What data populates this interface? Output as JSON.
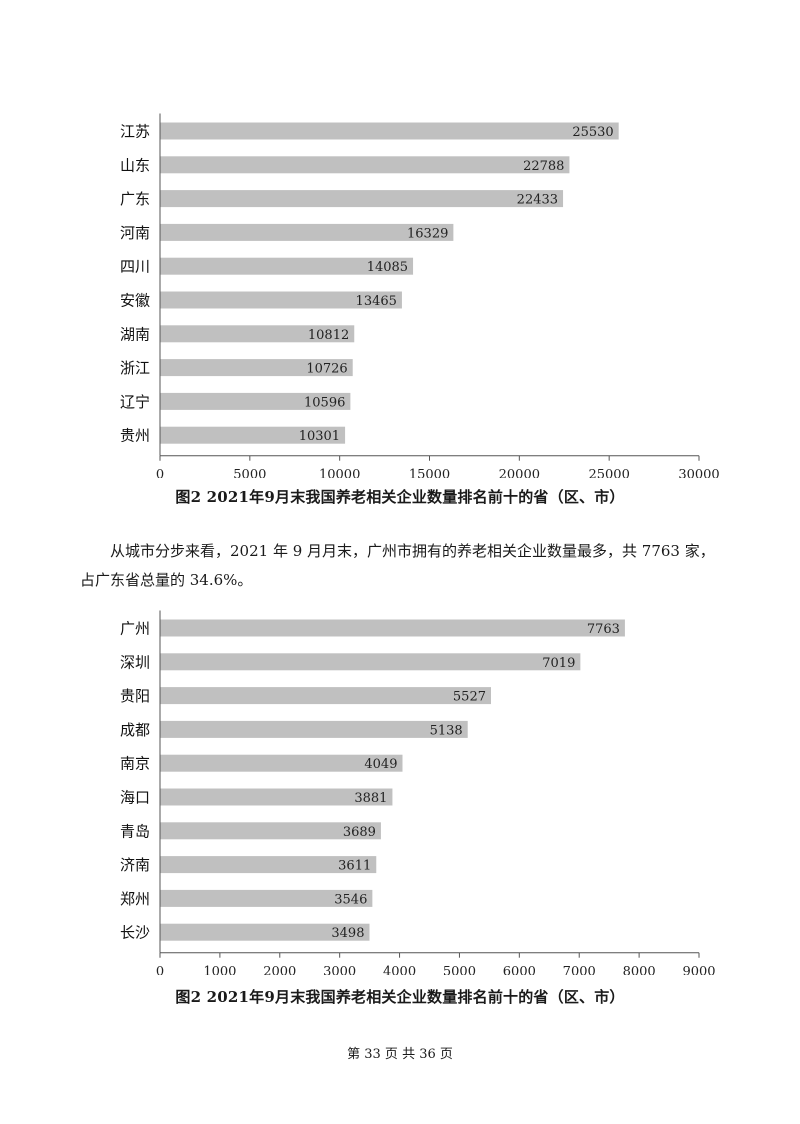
{
  "chart_data": [
    {
      "type": "bar",
      "orientation": "horizontal",
      "categories": [
        "江苏",
        "山东",
        "广东",
        "河南",
        "四川",
        "安徽",
        "湖南",
        "浙江",
        "辽宁",
        "贵州"
      ],
      "values": [
        25530,
        22788,
        22433,
        16329,
        14085,
        13465,
        10812,
        10726,
        10596,
        10301
      ],
      "xlim": [
        0,
        30000
      ],
      "xticks": [
        0,
        5000,
        10000,
        15000,
        20000,
        25000,
        30000
      ],
      "bar_color": "#c0c0c0",
      "grid": false,
      "caption": "图2 2021年9月末我国养老相关企业数量排名前十的省（区、市）"
    },
    {
      "type": "bar",
      "orientation": "horizontal",
      "categories": [
        "广州",
        "深圳",
        "贵阳",
        "成都",
        "南京",
        "海口",
        "青岛",
        "济南",
        "郑州",
        "长沙"
      ],
      "values": [
        7763,
        7019,
        5527,
        5138,
        4049,
        3881,
        3689,
        3611,
        3546,
        3498
      ],
      "xlim": [
        0,
        9000
      ],
      "xticks": [
        0,
        1000,
        2000,
        3000,
        4000,
        5000,
        6000,
        7000,
        8000,
        9000
      ],
      "bar_color": "#c0c0c0",
      "grid": false,
      "caption": "图2 2021年9月末我国养老相关企业数量排名前十的省（区、市）"
    }
  ],
  "paragraph": {
    "line1": "从城市分步来看，2021 年 9 月月末，广州市拥有的养老相关企业数量最多，共 7763 家，",
    "line2": "占广东省总量的 34.6%。"
  },
  "footer": "第 33 页   共 36 页"
}
